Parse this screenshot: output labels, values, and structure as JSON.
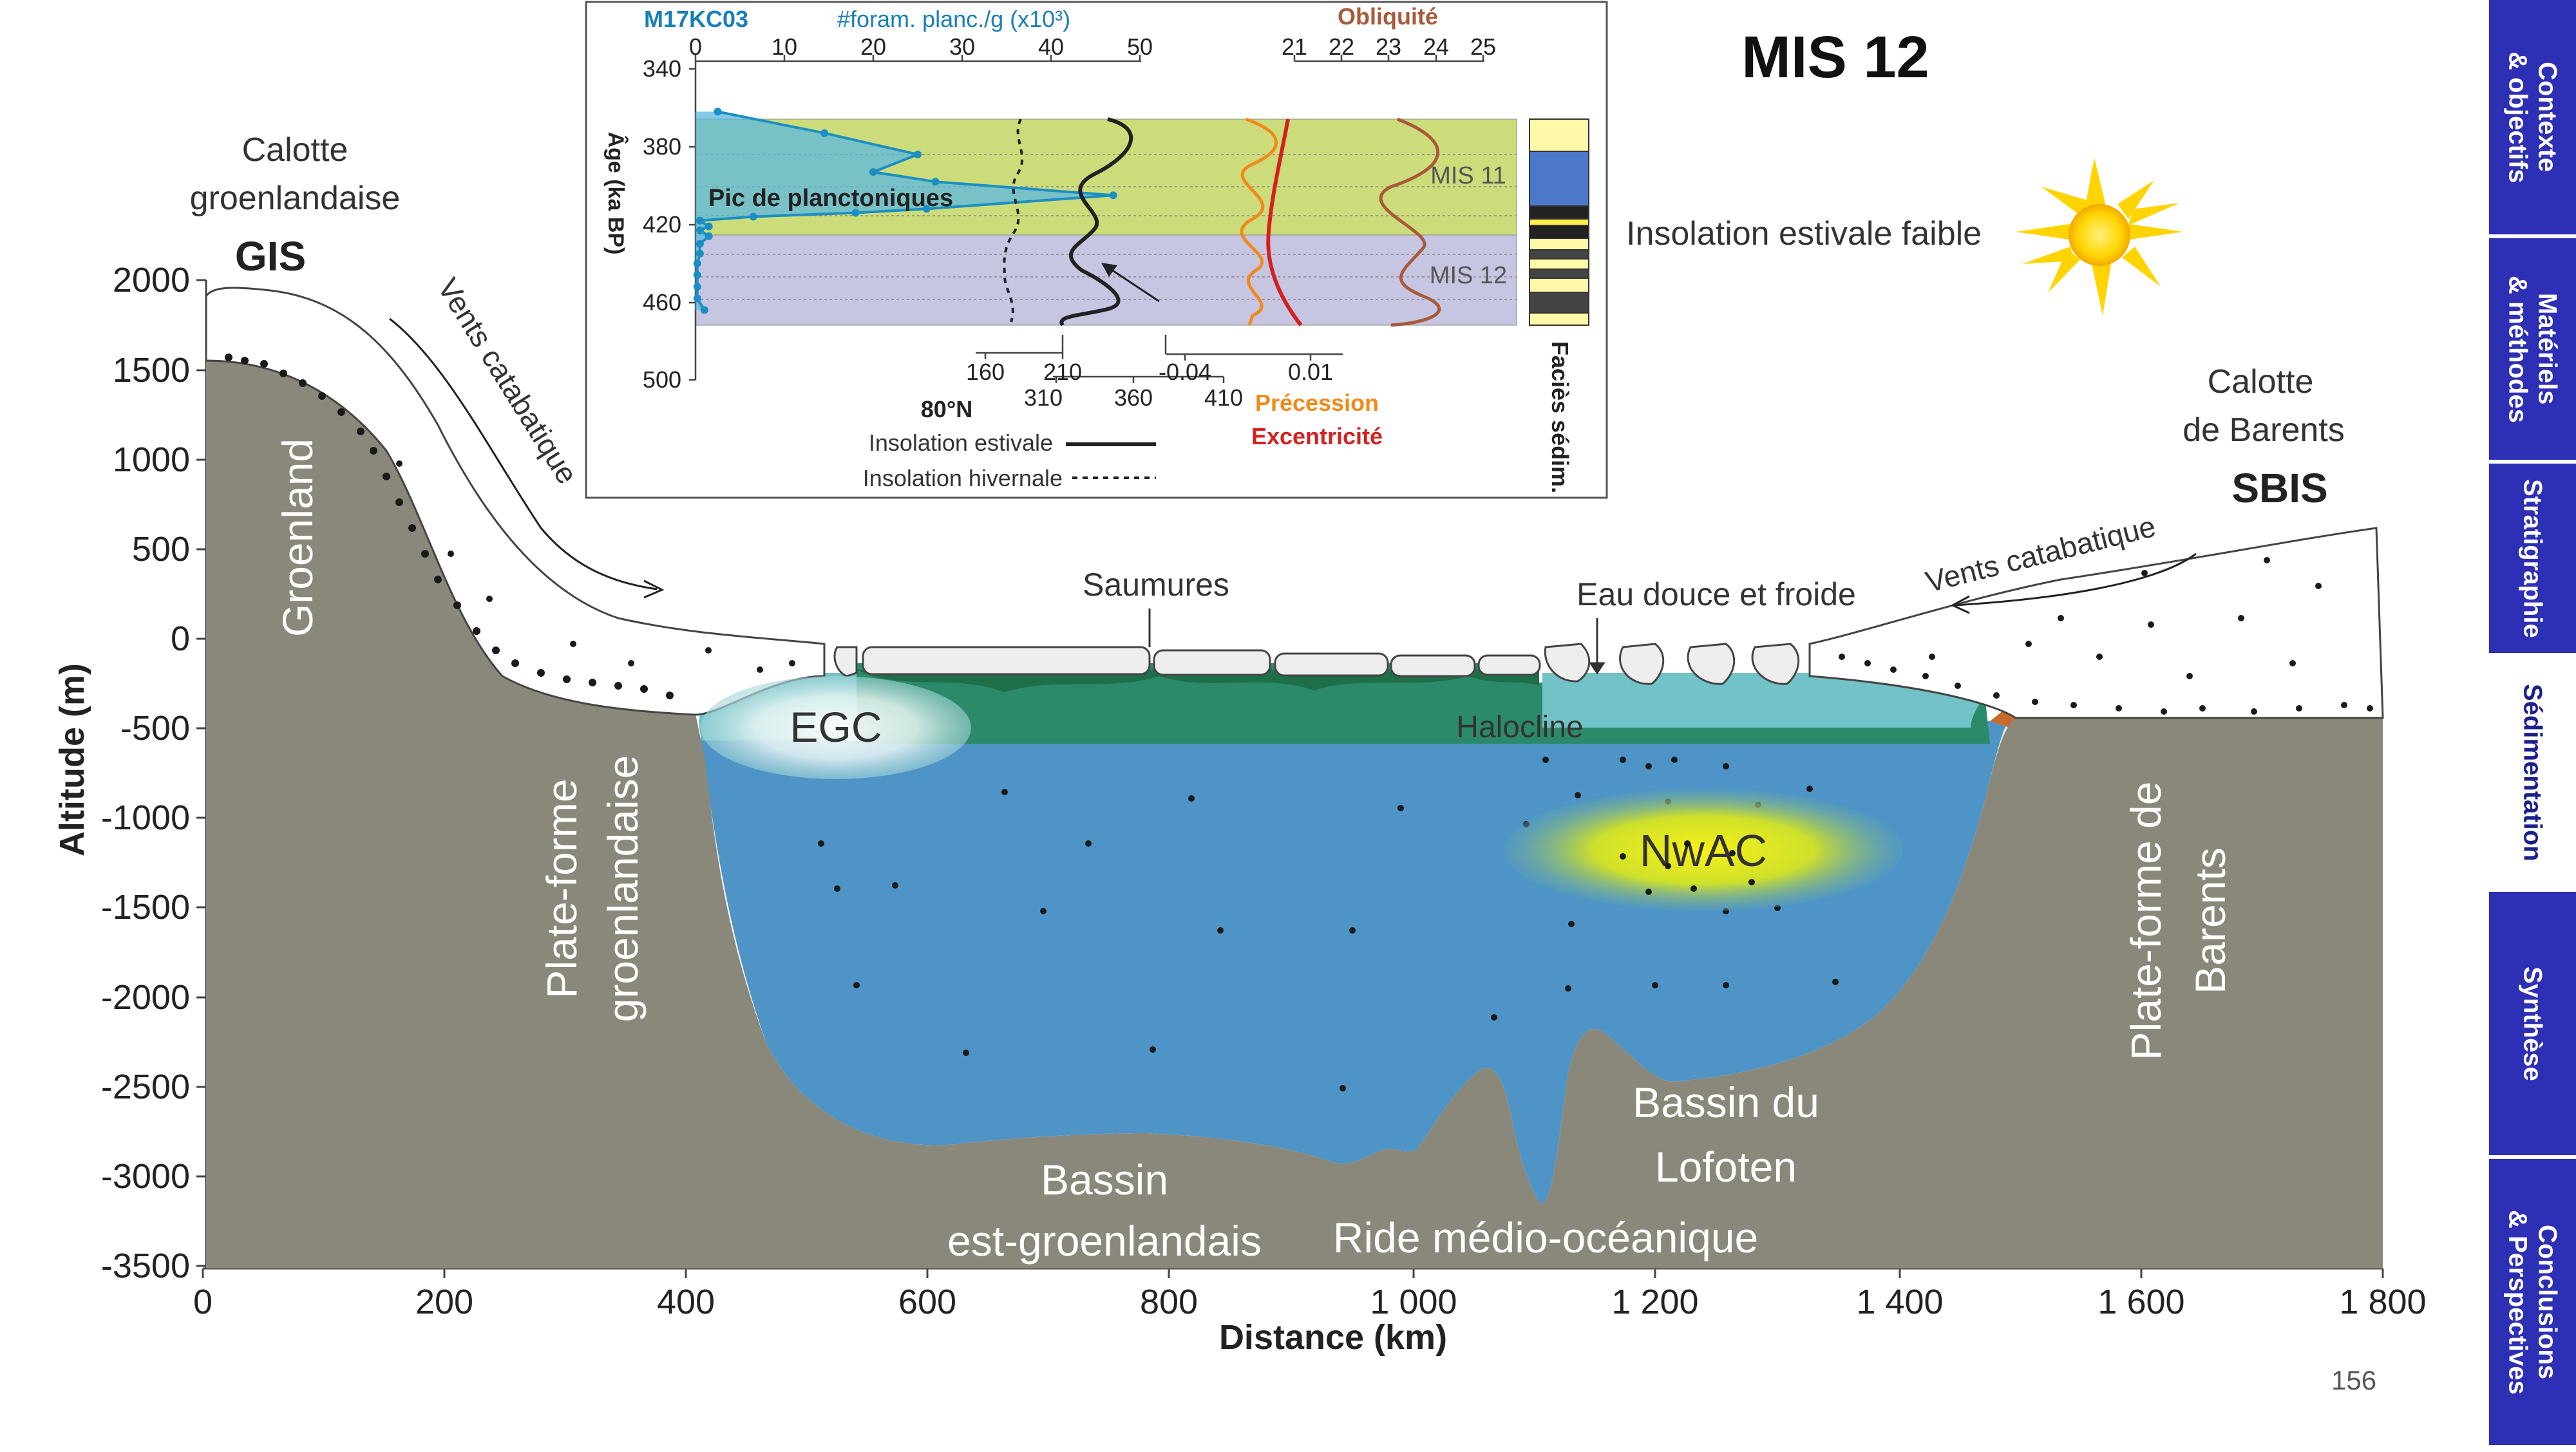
{
  "slide": {
    "title": "MIS 12",
    "page_number": "156",
    "insolation_note": "Insolation estivale faible"
  },
  "nav": {
    "tabs": [
      {
        "label": "Contexte\n& objectifs",
        "active": false
      },
      {
        "label": "Matériels\n& méthodes",
        "active": false
      },
      {
        "label": "Stratigraphie",
        "active": false
      },
      {
        "label": "Sédimentation",
        "active": true
      },
      {
        "label": "Synthèse",
        "active": false
      },
      {
        "label": "Conclusions\n& Perspectives",
        "active": false
      }
    ]
  },
  "section": {
    "ylabel": "Altitude (m)",
    "xlabel": "Distance (km)",
    "y_ticks": [
      "2000",
      "1500",
      "1000",
      "500",
      "0",
      "-500",
      "-1000",
      "-1500",
      "-2000",
      "-2500",
      "-3000",
      "-3500"
    ],
    "x_ticks": [
      "0",
      "200",
      "400",
      "600",
      "800",
      "1 000",
      "1 200",
      "1 400",
      "1 600",
      "1 800"
    ],
    "labels": {
      "calotte_gis_1": "Calotte",
      "calotte_gis_2": "groenlandaise",
      "gis": "GIS",
      "calotte_sbis_1": "Calotte",
      "calotte_sbis_2": "de Barents",
      "sbis": "SBIS",
      "vents_left": "Vents catabatique",
      "vents_right": "Vents catabatique",
      "groenland": "Groenland",
      "plateforme_gr_1": "Plate-forme",
      "plateforme_gr_2": "groenlandaise",
      "plateforme_ba_1": "Plate-forme de",
      "plateforme_ba_2": "Barents",
      "saumures": "Saumures",
      "eau_douce": "Eau douce et froide",
      "halocline": "Halocline",
      "egc": "EGC",
      "nwac": "NwAC",
      "bassin_eg_1": "Bassin",
      "bassin_eg_2": "est-groenlandais",
      "ride": "Ride médio-océanique",
      "bassin_lo_1": "Bassin du",
      "bassin_lo_2": "Lofoten"
    },
    "colors": {
      "rock": "#8a887a",
      "ocean": "#4e94c6",
      "ice": "#ffffff",
      "halocline_green": "#2b8a6a",
      "fresh_water": "#72c3c8"
    }
  },
  "inset": {
    "core": "M17KC03",
    "foram_label": "#foram. planc./g (x10³)",
    "foram_ticks": [
      "0",
      "10",
      "20",
      "30",
      "40",
      "50"
    ],
    "age_label": "Âge (ka BP)",
    "age_ticks": [
      "340",
      "380",
      "420",
      "460",
      "500"
    ],
    "pic_label": "Pic de planctoniques",
    "obliquite_label": "Obliquité",
    "obliquite_ticks": [
      "21",
      "22",
      "23",
      "24",
      "25"
    ],
    "mis11": "MIS 11",
    "mis12": "MIS 12",
    "insol_w_ticks": [
      "160",
      "210"
    ],
    "insol_s_ticks": [
      "310",
      "360",
      "410"
    ],
    "lat": "80°N",
    "prec_ticks": [
      "-0.04",
      "0.01"
    ],
    "precession": "Précession",
    "excentricite": "Excentricité",
    "legend_estivale": "Insolation estivale",
    "legend_hivernale": "Insolation hivernale",
    "facies": "Faciès sédim.",
    "foram_series": {
      "age": [
        362,
        373,
        384,
        393,
        398,
        405,
        412,
        414,
        416,
        418,
        421,
        423,
        426,
        430,
        435,
        440,
        446,
        452,
        458,
        464
      ],
      "value": [
        2.5,
        14.5,
        25,
        20,
        27,
        47,
        26,
        18,
        6.5,
        0.5,
        1.5,
        0.5,
        1.5,
        0.5,
        0.5,
        0.2,
        0.2,
        0.2,
        0.2,
        1
      ]
    },
    "colors": {
      "mis11_band": "#cddc7a",
      "mis12_band": "#c6c6e2",
      "foram": "#1a8fc4",
      "precession": "#f08a1c",
      "excentricite": "#d4211e",
      "obliquite": "#a85a3a"
    }
  }
}
